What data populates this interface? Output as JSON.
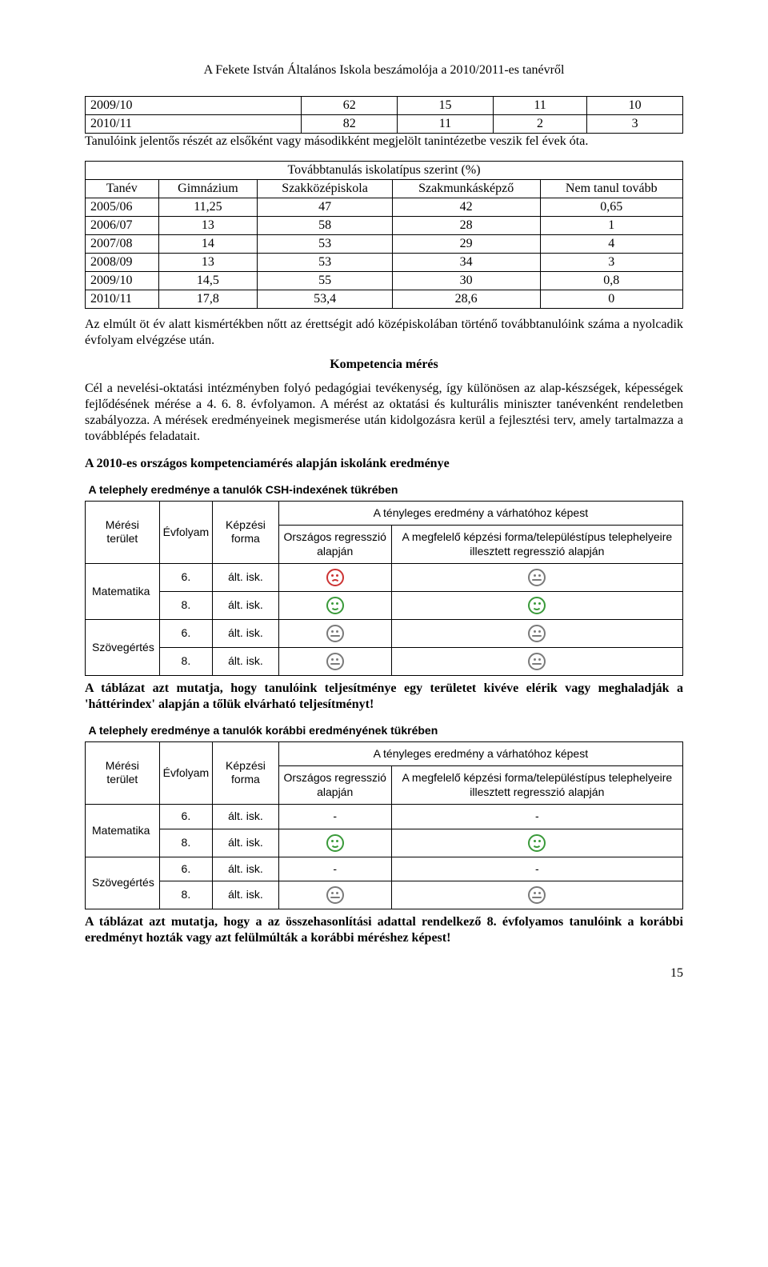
{
  "header": "A Fekete István Általános Iskola beszámolója a 2010/2011-es tanévről",
  "table1": {
    "rows": [
      [
        "2009/10",
        "62",
        "15",
        "11",
        "10"
      ],
      [
        "2010/11",
        "82",
        "11",
        "2",
        "3"
      ]
    ]
  },
  "note1": "Tanulóink jelentős részét az elsőként vagy másodikként megjelölt tanintézetbe veszik fel évek óta.",
  "table2": {
    "title": "Továbbtanulás iskolatípus szerint (%)",
    "headers": [
      "Tanév",
      "Gimnázium",
      "Szakközépiskola",
      "Szakmunkásképző",
      "Nem tanul tovább"
    ],
    "rows": [
      [
        "2005/06",
        "11,25",
        "47",
        "42",
        "0,65"
      ],
      [
        "2006/07",
        "13",
        "58",
        "28",
        "1"
      ],
      [
        "2007/08",
        "14",
        "53",
        "29",
        "4"
      ],
      [
        "2008/09",
        "13",
        "53",
        "34",
        "3"
      ],
      [
        "2009/10",
        "14,5",
        "55",
        "30",
        "0,8"
      ],
      [
        "2010/11",
        "17,8",
        "53,4",
        "28,6",
        "0"
      ]
    ]
  },
  "para1": "Az elmúlt öt év alatt kismértékben nőtt az érettségit adó középiskolában történő továbbtanulóink száma a nyolcadik évfolyam elvégzése után.",
  "h_komp": "Kompetencia mérés",
  "para2": "Cél a nevelési-oktatási intézményben folyó pedagógiai tevékenység, így különösen az alap-készségek, képességek fejlődésének mérése a 4. 6. 8. évfolyamon. A mérést az oktatási és kulturális miniszter tanévenként rendeletben szabályozza. A mérések eredményeinek megismerése után kidolgozásra kerül a fejlesztési terv, amely tartalmazza a továbblépés feladatait.",
  "h_2010": "A 2010-es országos kompetenciamérés alapján iskolánk eredménye",
  "results_a": {
    "caption": "A telephely eredménye a tanulók CSH-indexének tükrében",
    "top_header": "A tényleges eredmény a várhatóhoz képest",
    "cols": [
      "Mérési terület",
      "Évfolyam",
      "Képzési forma",
      "Országos regresszió alapján",
      "A megfelelő képzési forma/településtípus telephelyeire illesztett regresszió alapján"
    ],
    "groups": [
      {
        "subject": "Matematika",
        "rows": [
          {
            "grade": "6.",
            "form": "ált. isk.",
            "c1": "sad",
            "c2": "neutral"
          },
          {
            "grade": "8.",
            "form": "ált. isk.",
            "c1": "smile",
            "c2": "smile"
          }
        ]
      },
      {
        "subject": "Szövegértés",
        "rows": [
          {
            "grade": "6.",
            "form": "ált. isk.",
            "c1": "neutral",
            "c2": "neutral"
          },
          {
            "grade": "8.",
            "form": "ált. isk.",
            "c1": "neutral",
            "c2": "neutral"
          }
        ]
      }
    ]
  },
  "para3": "A táblázat azt mutatja, hogy tanulóink teljesítménye egy területet kivéve elérik vagy meghaladják a 'háttérindex' alapján a tőlük elvárható teljesítményt!",
  "results_b": {
    "caption": "A telephely eredménye a tanulók korábbi eredményének tükrében",
    "top_header": "A tényleges eredmény a várhatóhoz képest",
    "cols": [
      "Mérési terület",
      "Évfolyam",
      "Képzési forma",
      "Országos regresszió alapján",
      "A megfelelő képzési forma/településtípus telephelyeire illesztett regresszió alapján"
    ],
    "groups": [
      {
        "subject": "Matematika",
        "rows": [
          {
            "grade": "6.",
            "form": "ált. isk.",
            "c1": "-",
            "c2": "-"
          },
          {
            "grade": "8.",
            "form": "ált. isk.",
            "c1": "smile",
            "c2": "smile"
          }
        ]
      },
      {
        "subject": "Szövegértés",
        "rows": [
          {
            "grade": "6.",
            "form": "ált. isk.",
            "c1": "-",
            "c2": "-"
          },
          {
            "grade": "8.",
            "form": "ált. isk.",
            "c1": "neutral",
            "c2": "neutral"
          }
        ]
      }
    ]
  },
  "para4": "A táblázat azt mutatja, hogy a az összehasonlítási adattal rendelkező 8. évfolyamos tanulóink a korábbi eredményt hozták vagy azt felülmúlták a korábbi méréshez képest!",
  "page": "15"
}
